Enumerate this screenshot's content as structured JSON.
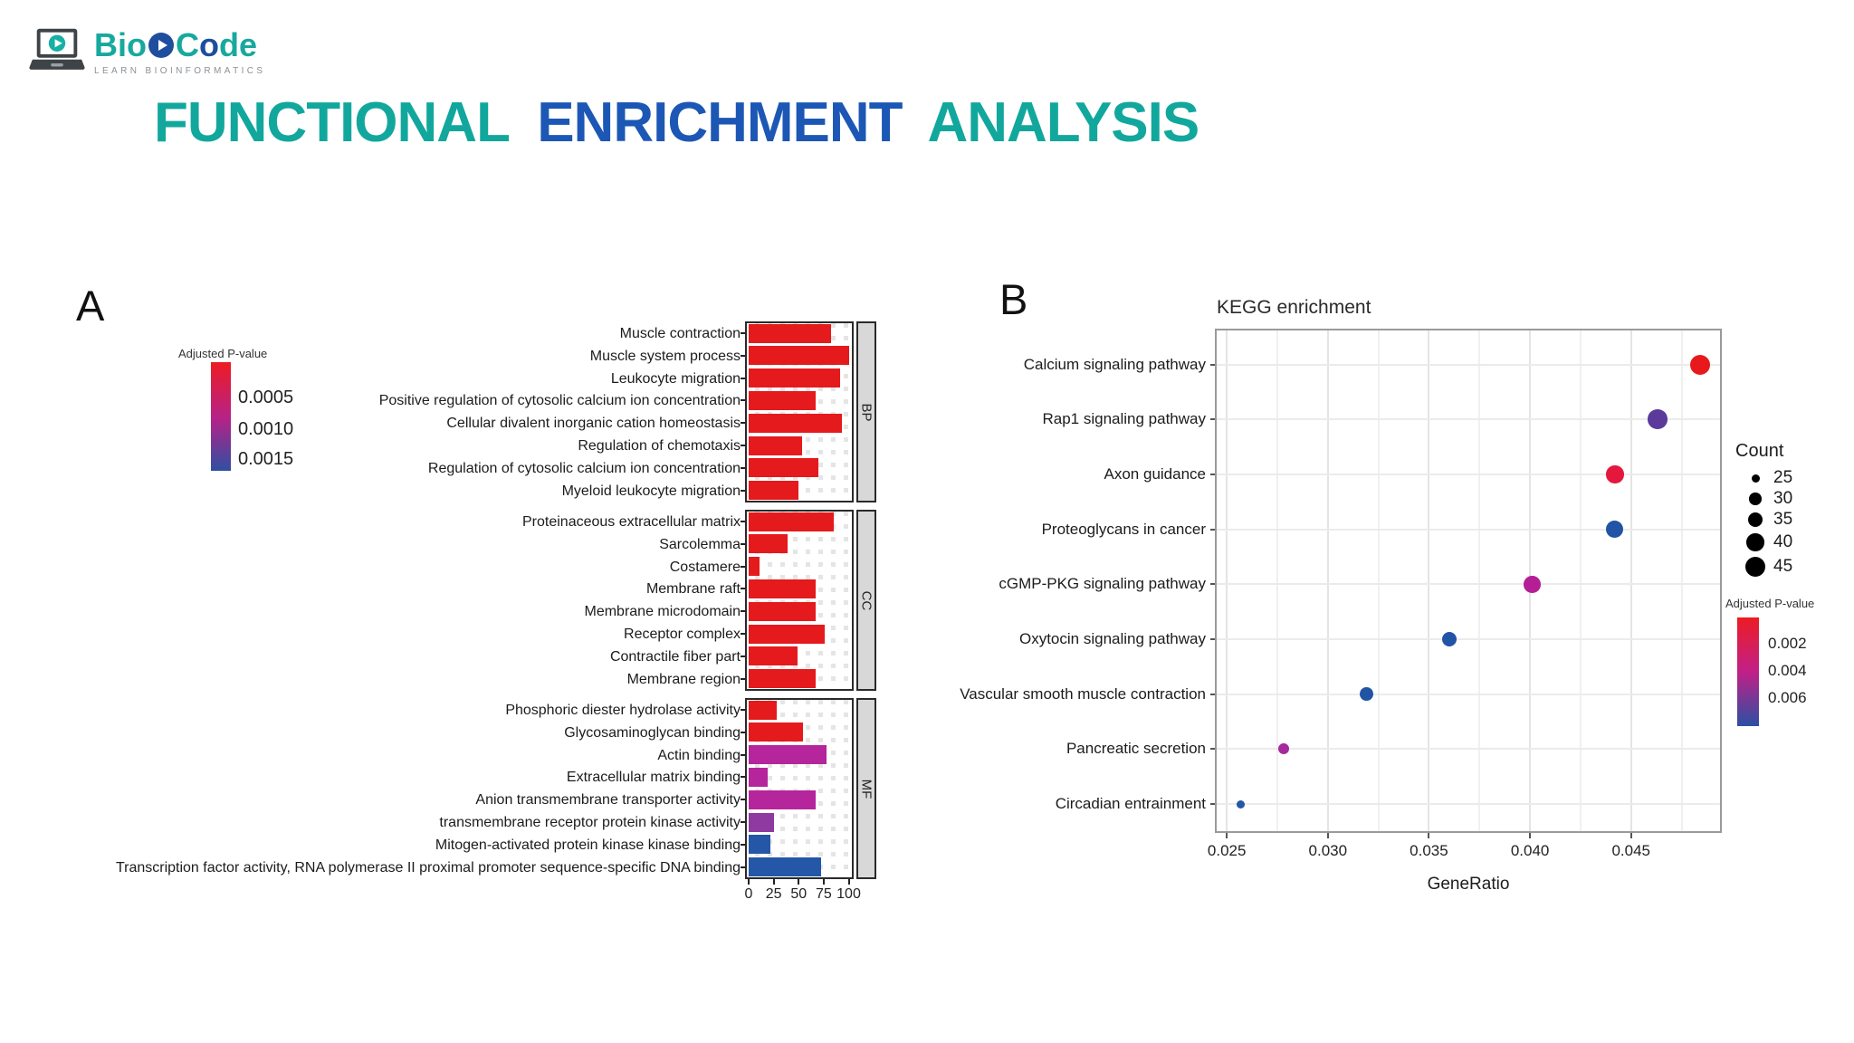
{
  "logo": {
    "brand": {
      "part1": "Bio",
      "part2": "C",
      "part3": "o",
      "part4": "de"
    },
    "tagline": "LEARN BIOINFORMATICS",
    "colors": {
      "teal": "#17A99E",
      "navy": "#1E4E9D",
      "laptop_dark": "#3E4347"
    }
  },
  "title": {
    "part1": "FUNCTIONAL",
    "part2": "ENRICHMENT",
    "part3": "ANALYSIS",
    "teal": "#12A79D",
    "blue": "#1C57B5"
  },
  "chart_data": [
    {
      "id": "go_enrichment_bars",
      "type": "bar",
      "panel_label": "A",
      "orientation": "horizontal",
      "x_ticks": [
        0,
        25,
        50,
        75,
        100
      ],
      "xlim": [
        0,
        108
      ],
      "legend": {
        "title": "Adjusted P-value",
        "ticks": [
          "0.0005",
          "0.0010",
          "0.0015"
        ],
        "gradient": [
          "#EE1B24",
          "#B52288",
          "#2F4FA2"
        ]
      },
      "facets": [
        {
          "name": "BP",
          "rows": [
            {
              "label": "Muscle contraction",
              "value": 82,
              "color": "#E41A1C"
            },
            {
              "label": "Muscle system process",
              "value": 100,
              "color": "#E41A1C"
            },
            {
              "label": "Leukocyte migration",
              "value": 91,
              "color": "#E41A1C"
            },
            {
              "label": "Positive regulation of cytosolic calcium ion concentration",
              "value": 67,
              "color": "#E41A1C"
            },
            {
              "label": "Cellular divalent inorganic cation homeostasis",
              "value": 93,
              "color": "#E41A1C"
            },
            {
              "label": "Regulation of chemotaxis",
              "value": 53,
              "color": "#E41A1C"
            },
            {
              "label": "Regulation of cytosolic calcium ion concentration",
              "value": 70,
              "color": "#E41A1C"
            },
            {
              "label": "Myeloid leukocyte migration",
              "value": 50,
              "color": "#E41A1C"
            }
          ]
        },
        {
          "name": "CC",
          "rows": [
            {
              "label": "Proteinaceous extracellular matrix",
              "value": 85,
              "color": "#E41A1C"
            },
            {
              "label": "Sarcolemma",
              "value": 39,
              "color": "#E41A1C"
            },
            {
              "label": "Costamere",
              "value": 11,
              "color": "#E41A1C"
            },
            {
              "label": "Membrane raft",
              "value": 67,
              "color": "#E41A1C"
            },
            {
              "label": "Membrane microdomain",
              "value": 67,
              "color": "#E41A1C"
            },
            {
              "label": "Receptor complex",
              "value": 76,
              "color": "#E41A1C"
            },
            {
              "label": "Contractile fiber part",
              "value": 49,
              "color": "#E41A1C"
            },
            {
              "label": "Membrane region",
              "value": 67,
              "color": "#E41A1C"
            }
          ]
        },
        {
          "name": "MF",
          "rows": [
            {
              "label": "Phosphoric diester hydrolase activity",
              "value": 28,
              "color": "#E41A1C"
            },
            {
              "label": "Glycosaminoglycan binding",
              "value": 54,
              "color": "#E41A1C"
            },
            {
              "label": "Actin binding",
              "value": 78,
              "color": "#B5259C"
            },
            {
              "label": "Extracellular matrix binding",
              "value": 19,
              "color": "#B5259C"
            },
            {
              "label": "Anion transmembrane transporter activity",
              "value": 67,
              "color": "#B5259C"
            },
            {
              "label": "transmembrane receptor protein kinase activity",
              "value": 25,
              "color": "#8E3AA0"
            },
            {
              "label": "Mitogen-activated protein kinase kinase binding",
              "value": 22,
              "color": "#2457A8"
            },
            {
              "label": "Transcription factor activity, RNA polymerase II proximal promoter sequence-specific DNA binding",
              "value": 72,
              "color": "#2457A8"
            }
          ]
        }
      ]
    },
    {
      "id": "kegg_enrichment_dotplot",
      "type": "scatter",
      "panel_label": "B",
      "title": "KEGG enrichment",
      "xlabel": "GeneRatio",
      "x_ticks": [
        "0.025",
        "0.030",
        "0.035",
        "0.040",
        "0.045"
      ],
      "xlim": [
        0.0245,
        0.0494
      ],
      "points": [
        {
          "pathway": "Calcium signaling pathway",
          "gene_ratio": 0.0484,
          "count": 45,
          "color": "#E8191C"
        },
        {
          "pathway": "Rap1 signaling pathway",
          "gene_ratio": 0.0463,
          "count": 44,
          "color": "#5B3A9B"
        },
        {
          "pathway": "Axon guidance",
          "gene_ratio": 0.0442,
          "count": 40,
          "color": "#E4173C"
        },
        {
          "pathway": "Proteoglycans in cancer",
          "gene_ratio": 0.0442,
          "count": 39,
          "color": "#2253A4"
        },
        {
          "pathway": "cGMP-PKG signaling pathway",
          "gene_ratio": 0.0401,
          "count": 38,
          "color": "#B51F96"
        },
        {
          "pathway": "Oxytocin signaling pathway",
          "gene_ratio": 0.036,
          "count": 34,
          "color": "#2254A6"
        },
        {
          "pathway": "Vascular smooth muscle contraction",
          "gene_ratio": 0.0319,
          "count": 32,
          "color": "#2254A6"
        },
        {
          "pathway": "Pancreatic secretion",
          "gene_ratio": 0.0278,
          "count": 28,
          "color": "#A62A9E"
        },
        {
          "pathway": "Circadian entrainment",
          "gene_ratio": 0.0257,
          "count": 25,
          "color": "#2457A8"
        }
      ],
      "legends": {
        "count": {
          "title": "Count",
          "sizes": [
            25,
            30,
            35,
            40,
            45
          ]
        },
        "pvalue": {
          "title": "Adjusted P-value",
          "ticks": [
            "0.002",
            "0.004",
            "0.006"
          ],
          "gradient": [
            "#ED1C24",
            "#C12087",
            "#2C4FA3"
          ]
        }
      }
    }
  ]
}
